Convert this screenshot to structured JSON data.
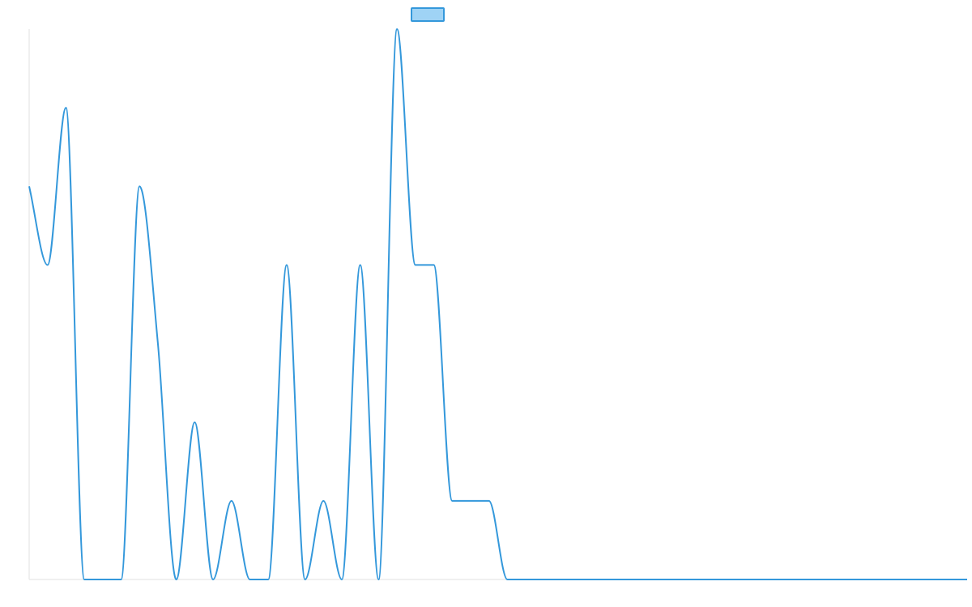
{
  "chart_data": {
    "type": "line",
    "title": "",
    "xlabel": "",
    "ylabel": "",
    "legend": {
      "placement": "top-center",
      "label": ""
    },
    "grid": false,
    "tick_labels_visible": false,
    "x": [
      0,
      1,
      2,
      3,
      4,
      5,
      6,
      7,
      8,
      9,
      10,
      11,
      12,
      13,
      14,
      15,
      16,
      17,
      18,
      19,
      20,
      21,
      22,
      23,
      24,
      25,
      26,
      27,
      28,
      29,
      30,
      31,
      32,
      33,
      34,
      35,
      36,
      37,
      38,
      39,
      40,
      41,
      42,
      43,
      44,
      45,
      46,
      47,
      48,
      49,
      50,
      51
    ],
    "xlim": [
      0,
      51
    ],
    "ylim": [
      0,
      7
    ],
    "series": [
      {
        "values": [
          5,
          4,
          6,
          0,
          0,
          0,
          5,
          3,
          0,
          2,
          0,
          1,
          0,
          0,
          4,
          0,
          1,
          0,
          4,
          0,
          7,
          4,
          4,
          1,
          1,
          1,
          0,
          0,
          0,
          0,
          0,
          0,
          0,
          0,
          0,
          0,
          0,
          0,
          0,
          0,
          0,
          0,
          0,
          0,
          0,
          0,
          0,
          0,
          0,
          0,
          0,
          0
        ]
      }
    ],
    "colors": {
      "line": "#3498db",
      "legend_fill": "#9fd3f5",
      "axis": "#e0e0e0"
    }
  }
}
